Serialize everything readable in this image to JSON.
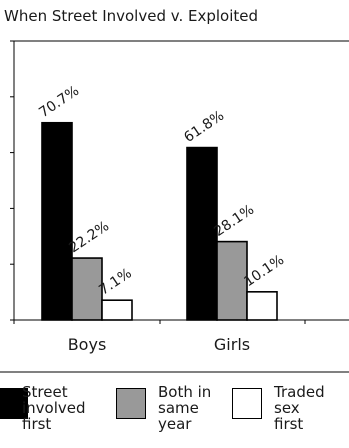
{
  "chart_data": {
    "type": "bar",
    "title": "When Street Involved v. Exploited",
    "xlabel": "",
    "ylabel": "",
    "categories": [
      "Boys",
      "Girls"
    ],
    "series": [
      {
        "name": "Street involved first",
        "color": "#000000",
        "values": [
          70.7,
          61.8
        ],
        "labels": [
          "70.7%",
          "61.8%"
        ]
      },
      {
        "name": "Both in same year",
        "color": "#999999",
        "values": [
          22.2,
          28.1
        ],
        "labels": [
          "22.2%",
          "28.1%"
        ]
      },
      {
        "name": "Traded sex first",
        "color": "#ffffff",
        "values": [
          7.1,
          10.1
        ],
        "labels": [
          "7.1%",
          "10.1%"
        ]
      }
    ],
    "ylim": [
      0,
      100
    ],
    "grid": false,
    "legend": "bottom"
  },
  "legend_items": [
    {
      "line1": "Street",
      "line2": "involved",
      "line3": "first",
      "color": "#000000"
    },
    {
      "line1": "Both in",
      "line2": "same",
      "line3": "year",
      "color": "#999999"
    },
    {
      "line1": "Traded",
      "line2": "sex",
      "line3": "first",
      "color": "#ffffff"
    }
  ]
}
